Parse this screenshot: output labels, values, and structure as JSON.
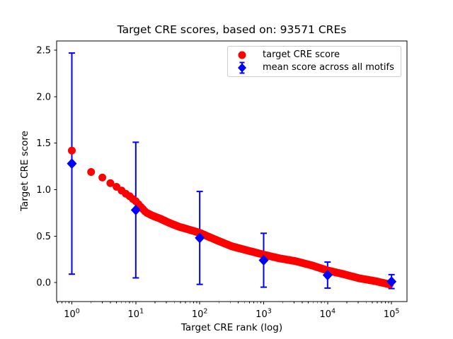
{
  "figure": {
    "title": "Target CRE scores, based on: 93571 CREs",
    "n_cres": 93571,
    "background": "#ffffff"
  },
  "axes": {
    "xlabel": "Target CRE rank (log)",
    "ylabel": "Target CRE score",
    "x_scale": "log",
    "y_tick_labels": [
      "0.0",
      "0.5",
      "1.0",
      "1.5",
      "2.0",
      "2.5"
    ],
    "x_tick_base": "10",
    "x_tick_exponents": [
      0,
      1,
      2,
      3,
      4,
      5
    ]
  },
  "legend": {
    "items": [
      {
        "label": "target CRE score",
        "marker": "red-dot",
        "color": "#ff0000"
      },
      {
        "label": "mean score across all motifs",
        "marker": "blue-diamond-errorbar",
        "color": "#0000ff"
      }
    ]
  },
  "colors": {
    "red": "#ff0000",
    "blue": "#0000ff",
    "axis": "#000000",
    "legend_border": "#cccccc"
  },
  "chart_data": {
    "type": "scatter",
    "title": "Target CRE scores, based on: 93571 CREs",
    "xlabel": "Target CRE rank (log)",
    "ylabel": "Target CRE score",
    "x_scale": "log",
    "grid": false,
    "xlim_log10": [
      -0.238,
      5.242
    ],
    "ylim": [
      -0.205,
      2.6
    ],
    "x_ticks": [
      1,
      10,
      100,
      1000,
      10000,
      100000
    ],
    "y_ticks": [
      0.0,
      0.5,
      1.0,
      1.5,
      2.0,
      2.5
    ],
    "series": [
      {
        "name": "target CRE score",
        "type": "scatter",
        "marker": "circle",
        "color": "#ff0000",
        "marker_radius_px": 5.5,
        "n_points": 93571,
        "max_rank": 93571,
        "first_10_ranks_scores": [
          1.42,
          1.19,
          1.13,
          1.07,
          1.03,
          0.99,
          0.955,
          0.93,
          0.9,
          0.875
        ],
        "score_vs_log10_rank_profile": [
          [
            0.0,
            1.42
          ],
          [
            0.301,
            1.19
          ],
          [
            0.477,
            1.13
          ],
          [
            0.602,
            1.07
          ],
          [
            0.699,
            1.03
          ],
          [
            0.778,
            0.99
          ],
          [
            0.845,
            0.955
          ],
          [
            0.903,
            0.93
          ],
          [
            0.954,
            0.9
          ],
          [
            1.0,
            0.875
          ],
          [
            1.07,
            0.82
          ],
          [
            1.16,
            0.755
          ],
          [
            1.26,
            0.72
          ],
          [
            1.39,
            0.685
          ],
          [
            1.53,
            0.64
          ],
          [
            1.68,
            0.6
          ],
          [
            1.9,
            0.556
          ],
          [
            2.0,
            0.535
          ],
          [
            2.25,
            0.46
          ],
          [
            2.5,
            0.39
          ],
          [
            2.75,
            0.345
          ],
          [
            3.0,
            0.3
          ],
          [
            3.25,
            0.26
          ],
          [
            3.5,
            0.23
          ],
          [
            3.75,
            0.185
          ],
          [
            4.0,
            0.13
          ],
          [
            4.25,
            0.09
          ],
          [
            4.5,
            0.045
          ],
          [
            4.75,
            0.015
          ],
          [
            4.971,
            -0.02
          ]
        ]
      },
      {
        "name": "mean score across all motifs",
        "type": "errorbar",
        "marker": "diamond",
        "color": "#0000ff",
        "ranks": [
          1,
          10,
          100,
          1000,
          10000,
          100000
        ],
        "means": [
          1.28,
          0.78,
          0.48,
          0.24,
          0.08,
          0.01
        ],
        "std": [
          1.19,
          0.73,
          0.5,
          0.29,
          0.14,
          0.075
        ]
      }
    ],
    "legend_position": "upper right"
  }
}
